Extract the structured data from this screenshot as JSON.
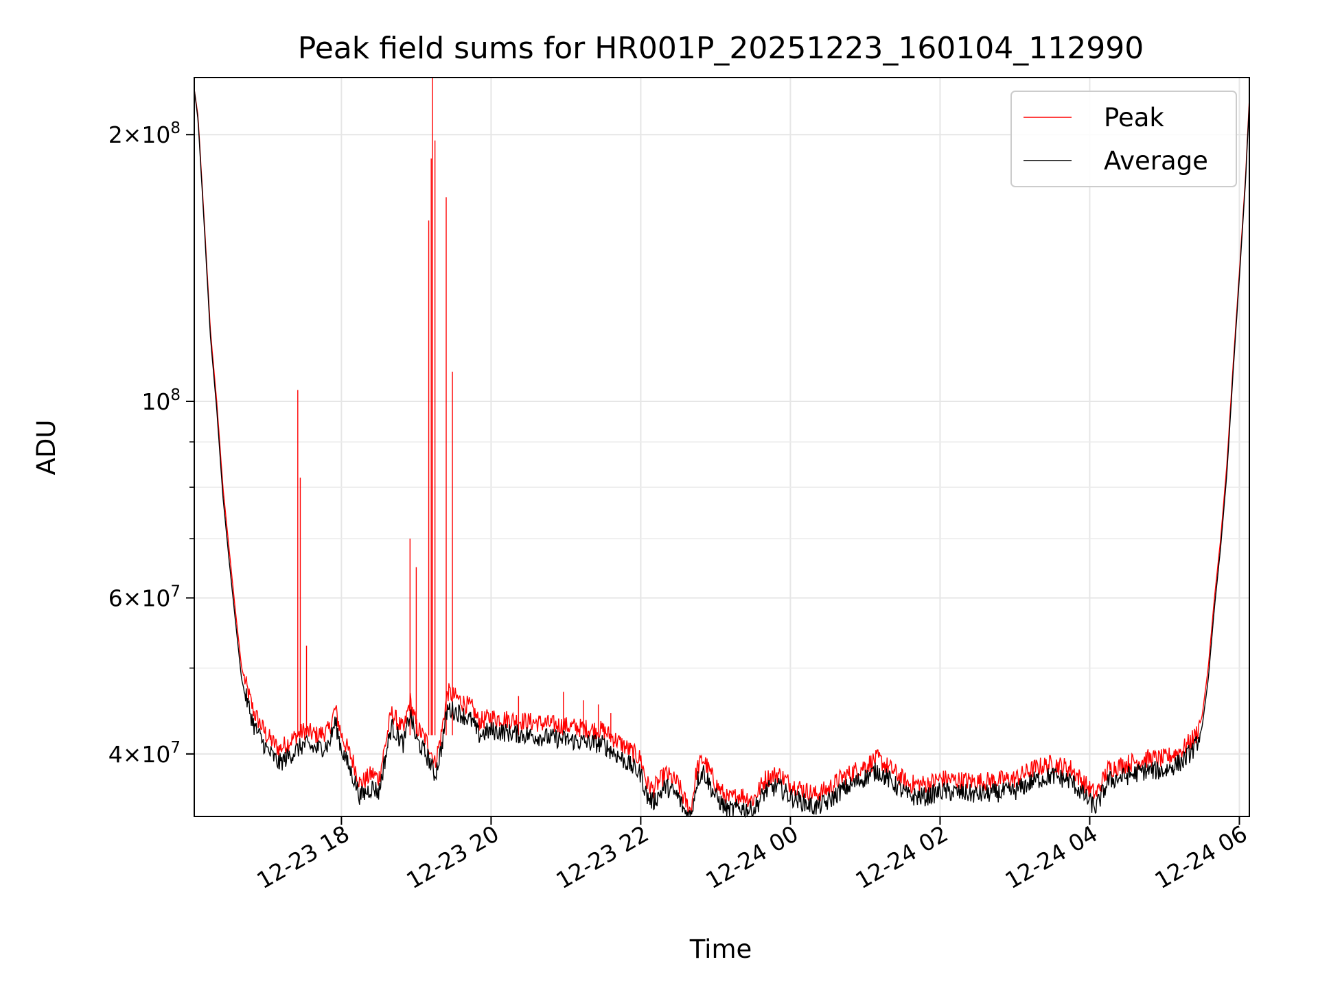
{
  "chart_data": {
    "type": "line",
    "title": "Peak field sums for HR001P_20251223_160104_112990",
    "xlabel": "Time",
    "ylabel": "ADU",
    "y_scale": "log",
    "ylim": [
      34000000,
      232000000
    ],
    "xlim": [
      "2025-12-23 16:02",
      "2025-12-24 06:08"
    ],
    "grid": true,
    "legend_position": "top-right",
    "x_ticks": [
      {
        "t": "2025-12-23 18:00",
        "label": "12-23 18"
      },
      {
        "t": "2025-12-23 20:00",
        "label": "12-23 20"
      },
      {
        "t": "2025-12-23 22:00",
        "label": "12-23 22"
      },
      {
        "t": "2025-12-24 00:00",
        "label": "12-24 00"
      },
      {
        "t": "2025-12-24 02:00",
        "label": "12-24 02"
      },
      {
        "t": "2025-12-24 04:00",
        "label": "12-24 04"
      },
      {
        "t": "2025-12-24 06:00",
        "label": "12-24 06"
      }
    ],
    "y_ticks_major": [
      {
        "v": 40000000,
        "mant": "4",
        "exp": "7"
      },
      {
        "v": 60000000,
        "mant": "6",
        "exp": "7"
      },
      {
        "v": 100000000,
        "mant": "",
        "exp": "8"
      },
      {
        "v": 200000000,
        "mant": "2",
        "exp": "8"
      }
    ],
    "y_ticks_minor": [
      50000000,
      70000000,
      80000000,
      90000000
    ],
    "series": [
      {
        "name": "Peak",
        "color": "#ff0000",
        "points": [
          [
            "2025-12-23 16:02",
            225000000
          ],
          [
            "2025-12-23 16:05",
            210000000
          ],
          [
            "2025-12-23 16:10",
            160000000
          ],
          [
            "2025-12-23 16:15",
            120000000
          ],
          [
            "2025-12-23 16:20",
            100000000
          ],
          [
            "2025-12-23 16:25",
            80000000
          ],
          [
            "2025-12-23 16:30",
            68000000
          ],
          [
            "2025-12-23 16:35",
            58000000
          ],
          [
            "2025-12-23 16:40",
            50000000
          ],
          [
            "2025-12-23 16:45",
            47000000
          ],
          [
            "2025-12-23 16:50",
            44500000
          ],
          [
            "2025-12-23 17:00",
            42000000
          ],
          [
            "2025-12-23 17:10",
            40500000
          ],
          [
            "2025-12-23 17:20",
            41500000
          ],
          [
            "2025-12-23 17:30",
            42500000
          ],
          [
            "2025-12-23 17:40",
            42000000
          ],
          [
            "2025-12-23 17:50",
            42500000
          ],
          [
            "2025-12-23 17:55",
            45000000
          ],
          [
            "2025-12-23 18:00",
            42000000
          ],
          [
            "2025-12-23 18:10",
            39000000
          ],
          [
            "2025-12-23 18:15",
            37000000
          ],
          [
            "2025-12-23 18:25",
            38000000
          ],
          [
            "2025-12-23 18:30",
            37500000
          ],
          [
            "2025-12-23 18:40",
            44500000
          ],
          [
            "2025-12-23 18:50",
            42500000
          ],
          [
            "2025-12-23 18:55",
            46000000
          ],
          [
            "2025-12-23 19:00",
            43000000
          ],
          [
            "2025-12-23 19:10",
            41000000
          ],
          [
            "2025-12-23 19:15",
            39000000
          ],
          [
            "2025-12-23 19:20",
            42000000
          ],
          [
            "2025-12-23 19:25",
            47000000
          ],
          [
            "2025-12-23 19:35",
            46000000
          ],
          [
            "2025-12-23 19:45",
            45000000
          ],
          [
            "2025-12-23 19:50",
            43500000
          ],
          [
            "2025-12-23 20:00",
            44000000
          ],
          [
            "2025-12-23 20:30",
            43500000
          ],
          [
            "2025-12-23 21:00",
            43000000
          ],
          [
            "2025-12-23 21:30",
            42500000
          ],
          [
            "2025-12-23 21:45",
            41000000
          ],
          [
            "2025-12-23 22:00",
            39500000
          ],
          [
            "2025-12-23 22:05",
            37000000
          ],
          [
            "2025-12-23 22:10",
            36500000
          ],
          [
            "2025-12-23 22:20",
            38000000
          ],
          [
            "2025-12-23 22:30",
            37000000
          ],
          [
            "2025-12-23 22:35",
            35500000
          ],
          [
            "2025-12-23 22:40",
            34500000
          ],
          [
            "2025-12-23 22:45",
            38500000
          ],
          [
            "2025-12-23 22:50",
            39500000
          ],
          [
            "2025-12-23 23:00",
            37000000
          ],
          [
            "2025-12-23 23:10",
            35500000
          ],
          [
            "2025-12-23 23:20",
            36000000
          ],
          [
            "2025-12-23 23:30",
            35500000
          ],
          [
            "2025-12-23 23:40",
            37500000
          ],
          [
            "2025-12-23 23:50",
            38000000
          ],
          [
            "2025-12-24 00:00",
            37000000
          ],
          [
            "2025-12-24 00:10",
            36500000
          ],
          [
            "2025-12-24 00:20",
            36000000
          ],
          [
            "2025-12-24 00:30",
            36500000
          ],
          [
            "2025-12-24 00:40",
            37500000
          ],
          [
            "2025-12-24 00:55",
            38500000
          ],
          [
            "2025-12-24 01:10",
            39500000
          ],
          [
            "2025-12-24 01:20",
            38500000
          ],
          [
            "2025-12-24 01:35",
            37000000
          ],
          [
            "2025-12-24 01:50",
            37000000
          ],
          [
            "2025-12-24 02:00",
            37500000
          ],
          [
            "2025-12-24 02:30",
            37200000
          ],
          [
            "2025-12-24 03:00",
            37500000
          ],
          [
            "2025-12-24 03:15",
            38500000
          ],
          [
            "2025-12-24 03:30",
            39000000
          ],
          [
            "2025-12-24 03:45",
            38500000
          ],
          [
            "2025-12-24 04:00",
            36500000
          ],
          [
            "2025-12-24 04:05",
            36000000
          ],
          [
            "2025-12-24 04:15",
            38500000
          ],
          [
            "2025-12-24 04:30",
            39000000
          ],
          [
            "2025-12-24 04:45",
            39500000
          ],
          [
            "2025-12-24 05:00",
            39500000
          ],
          [
            "2025-12-24 05:15",
            40500000
          ],
          [
            "2025-12-24 05:25",
            42000000
          ],
          [
            "2025-12-24 05:30",
            44000000
          ],
          [
            "2025-12-24 05:35",
            50000000
          ],
          [
            "2025-12-24 05:40",
            60000000
          ],
          [
            "2025-12-24 05:45",
            70000000
          ],
          [
            "2025-12-24 05:50",
            85000000
          ],
          [
            "2025-12-24 05:55",
            110000000
          ],
          [
            "2025-12-24 06:00",
            140000000
          ],
          [
            "2025-12-24 06:05",
            180000000
          ],
          [
            "2025-12-24 06:08",
            220000000
          ]
        ],
        "spikes": [
          [
            "2025-12-23 17:25",
            103000000
          ],
          [
            "2025-12-23 17:27",
            82000000
          ],
          [
            "2025-12-23 17:32",
            53000000
          ],
          [
            "2025-12-23 18:55",
            70000000
          ],
          [
            "2025-12-23 19:00",
            65000000
          ],
          [
            "2025-12-23 19:10",
            160000000
          ],
          [
            "2025-12-23 19:12",
            188000000
          ],
          [
            "2025-12-23 19:13",
            232000000
          ],
          [
            "2025-12-23 19:15",
            197000000
          ],
          [
            "2025-12-23 19:24",
            170000000
          ],
          [
            "2025-12-23 19:29",
            108000000
          ],
          [
            "2025-12-23 20:22",
            46500000
          ],
          [
            "2025-12-23 20:58",
            47000000
          ],
          [
            "2025-12-23 21:14",
            46000000
          ],
          [
            "2025-12-23 21:26",
            45500000
          ],
          [
            "2025-12-23 21:36",
            44500000
          ]
        ]
      },
      {
        "name": "Average",
        "color": "#000000",
        "points": [
          [
            "2025-12-23 16:02",
            225000000
          ],
          [
            "2025-12-23 16:05",
            208000000
          ],
          [
            "2025-12-23 16:10",
            158000000
          ],
          [
            "2025-12-23 16:15",
            118000000
          ],
          [
            "2025-12-23 16:20",
            98000000
          ],
          [
            "2025-12-23 16:25",
            78000000
          ],
          [
            "2025-12-23 16:30",
            66000000
          ],
          [
            "2025-12-23 16:35",
            56500000
          ],
          [
            "2025-12-23 16:40",
            48500000
          ],
          [
            "2025-12-23 16:45",
            45500000
          ],
          [
            "2025-12-23 16:50",
            43000000
          ],
          [
            "2025-12-23 17:00",
            40500000
          ],
          [
            "2025-12-23 17:10",
            39000000
          ],
          [
            "2025-12-23 17:20",
            40000000
          ],
          [
            "2025-12-23 17:30",
            41000000
          ],
          [
            "2025-12-23 17:40",
            40500000
          ],
          [
            "2025-12-23 17:50",
            41000000
          ],
          [
            "2025-12-23 17:55",
            43500000
          ],
          [
            "2025-12-23 18:00",
            40500000
          ],
          [
            "2025-12-23 18:10",
            37500000
          ],
          [
            "2025-12-23 18:15",
            35800000
          ],
          [
            "2025-12-23 18:25",
            36700000
          ],
          [
            "2025-12-23 18:30",
            36200000
          ],
          [
            "2025-12-23 18:40",
            43000000
          ],
          [
            "2025-12-23 18:50",
            41000000
          ],
          [
            "2025-12-23 18:55",
            44500000
          ],
          [
            "2025-12-23 19:00",
            41500000
          ],
          [
            "2025-12-23 19:10",
            39500000
          ],
          [
            "2025-12-23 19:15",
            37800000
          ],
          [
            "2025-12-23 19:20",
            40500000
          ],
          [
            "2025-12-23 19:25",
            45000000
          ],
          [
            "2025-12-23 19:35",
            44500000
          ],
          [
            "2025-12-23 19:45",
            43500000
          ],
          [
            "2025-12-23 19:50",
            42000000
          ],
          [
            "2025-12-23 20:00",
            42500000
          ],
          [
            "2025-12-23 20:30",
            42000000
          ],
          [
            "2025-12-23 21:00",
            41500000
          ],
          [
            "2025-12-23 21:30",
            41000000
          ],
          [
            "2025-12-23 21:45",
            39500000
          ],
          [
            "2025-12-23 22:00",
            38000000
          ],
          [
            "2025-12-23 22:05",
            35800000
          ],
          [
            "2025-12-23 22:10",
            35300000
          ],
          [
            "2025-12-23 22:20",
            36800000
          ],
          [
            "2025-12-23 22:30",
            35800000
          ],
          [
            "2025-12-23 22:35",
            34500000
          ],
          [
            "2025-12-23 22:40",
            34000000
          ],
          [
            "2025-12-23 22:45",
            37300000
          ],
          [
            "2025-12-23 22:50",
            38300000
          ],
          [
            "2025-12-23 23:00",
            35800000
          ],
          [
            "2025-12-23 23:10",
            34500000
          ],
          [
            "2025-12-23 23:20",
            34800000
          ],
          [
            "2025-12-23 23:30",
            34500000
          ],
          [
            "2025-12-23 23:40",
            36300000
          ],
          [
            "2025-12-23 23:50",
            36800000
          ],
          [
            "2025-12-24 00:00",
            35800000
          ],
          [
            "2025-12-24 00:10",
            35300000
          ],
          [
            "2025-12-24 00:20",
            34800000
          ],
          [
            "2025-12-24 00:30",
            35300000
          ],
          [
            "2025-12-24 00:40",
            36300000
          ],
          [
            "2025-12-24 00:55",
            37300000
          ],
          [
            "2025-12-24 01:10",
            38300000
          ],
          [
            "2025-12-24 01:20",
            37300000
          ],
          [
            "2025-12-24 01:35",
            35800000
          ],
          [
            "2025-12-24 01:50",
            35800000
          ],
          [
            "2025-12-24 02:00",
            36300000
          ],
          [
            "2025-12-24 02:30",
            36000000
          ],
          [
            "2025-12-24 03:00",
            36300000
          ],
          [
            "2025-12-24 03:15",
            37300000
          ],
          [
            "2025-12-24 03:30",
            37800000
          ],
          [
            "2025-12-24 03:45",
            37300000
          ],
          [
            "2025-12-24 04:00",
            35300000
          ],
          [
            "2025-12-24 04:05",
            34800000
          ],
          [
            "2025-12-24 04:15",
            37300000
          ],
          [
            "2025-12-24 04:30",
            37800000
          ],
          [
            "2025-12-24 04:45",
            38300000
          ],
          [
            "2025-12-24 05:00",
            38300000
          ],
          [
            "2025-12-24 05:15",
            39300000
          ],
          [
            "2025-12-24 05:25",
            40800000
          ],
          [
            "2025-12-24 05:30",
            42800000
          ],
          [
            "2025-12-24 05:35",
            48500000
          ],
          [
            "2025-12-24 05:40",
            58500000
          ],
          [
            "2025-12-24 05:45",
            68500000
          ],
          [
            "2025-12-24 05:50",
            83000000
          ],
          [
            "2025-12-24 05:55",
            108000000
          ],
          [
            "2025-12-24 06:00",
            138000000
          ],
          [
            "2025-12-24 06:05",
            178000000
          ],
          [
            "2025-12-24 06:08",
            218000000
          ]
        ]
      }
    ]
  }
}
